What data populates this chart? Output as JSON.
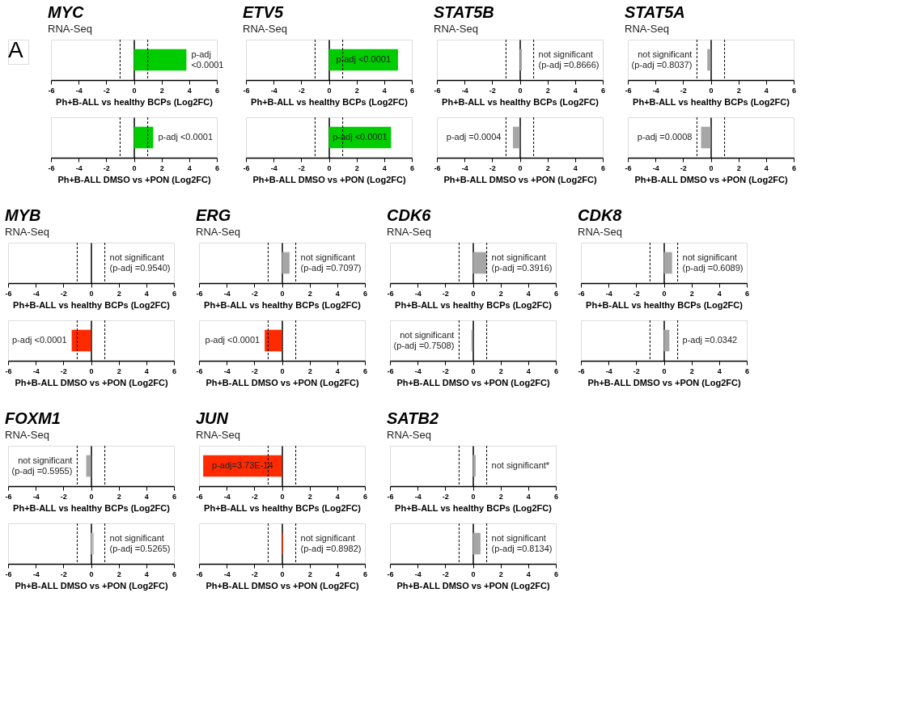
{
  "chart_data": [
    {
      "type": "other",
      "title": "A"
    },
    {
      "type": "bar",
      "orientation": "horizontal",
      "title": "MYC",
      "subtitle": "RNA-Seq",
      "categories": [
        null
      ],
      "values": [
        3.8
      ],
      "colors": [
        "#00cc00"
      ],
      "xlim": [
        -6,
        6
      ],
      "xticks": [
        -6,
        -4,
        -2,
        0,
        2,
        4,
        6
      ],
      "xlabel": "Ph+B-ALL vs healthy BCPs (Log2FC)",
      "tick_labels": "x",
      "ref_lines": [
        {
          "axis": "x",
          "value": -1,
          "line_style": "dashed"
        },
        {
          "axis": "x",
          "value": 1,
          "line_style": "dashed"
        }
      ],
      "annotations": [
        "p-adj",
        "<0.0001"
      ]
    },
    {
      "type": "bar",
      "orientation": "horizontal",
      "categories": [
        null
      ],
      "values": [
        1.4
      ],
      "colors": [
        "#00cc00"
      ],
      "xlim": [
        -6,
        6
      ],
      "xticks": [
        -6,
        -4,
        -2,
        0,
        2,
        4,
        6
      ],
      "xlabel": "Ph+B-ALL DMSO vs +PON (Log2FC)",
      "tick_labels": "x",
      "ref_lines": [
        {
          "axis": "x",
          "value": -1,
          "line_style": "dashed"
        },
        {
          "axis": "x",
          "value": 1,
          "line_style": "dashed"
        }
      ],
      "annotations": [
        "p-adj <0.0001"
      ]
    },
    {
      "type": "bar",
      "orientation": "horizontal",
      "title": "ETV5",
      "subtitle": "RNA-Seq",
      "categories": [
        null
      ],
      "values": [
        5.0
      ],
      "colors": [
        "#00cc00"
      ],
      "xlim": [
        -6,
        6
      ],
      "xticks": [
        -6,
        -4,
        -2,
        0,
        2,
        4,
        6
      ],
      "xlabel": "Ph+B-ALL vs healthy BCPs (Log2FC)",
      "tick_labels": "x",
      "ref_lines": [
        {
          "axis": "x",
          "value": -1,
          "line_style": "dashed"
        },
        {
          "axis": "x",
          "value": 1,
          "line_style": "dashed"
        }
      ],
      "annotations": [
        "p-adj <0.0001"
      ]
    },
    {
      "type": "bar",
      "orientation": "horizontal",
      "categories": [
        null
      ],
      "values": [
        4.5
      ],
      "colors": [
        "#00cc00"
      ],
      "xlim": [
        -6,
        6
      ],
      "xticks": [
        -6,
        -4,
        -2,
        0,
        2,
        4,
        6
      ],
      "xlabel": "Ph+B-ALL DMSO vs +PON (Log2FC)",
      "tick_labels": "x",
      "ref_lines": [
        {
          "axis": "x",
          "value": -1,
          "line_style": "dashed"
        },
        {
          "axis": "x",
          "value": 1,
          "line_style": "dashed"
        }
      ],
      "annotations": [
        "p-adj <0.0001"
      ]
    },
    {
      "type": "bar",
      "orientation": "horizontal",
      "title": "STAT5B",
      "subtitle": "RNA-Seq",
      "categories": [
        null
      ],
      "values": [
        0.15
      ],
      "colors": [
        "#a6a6a6"
      ],
      "xlim": [
        -6,
        6
      ],
      "xticks": [
        -6,
        -4,
        -2,
        0,
        2,
        4,
        6
      ],
      "xlabel": "Ph+B-ALL vs healthy BCPs (Log2FC)",
      "tick_labels": "x",
      "ref_lines": [
        {
          "axis": "x",
          "value": -1,
          "line_style": "dashed"
        },
        {
          "axis": "x",
          "value": 1,
          "line_style": "dashed"
        }
      ],
      "annotations": [
        "not significant",
        "(p-adj =0.8666)"
      ]
    },
    {
      "type": "bar",
      "orientation": "horizontal",
      "categories": [
        null
      ],
      "values": [
        -0.5
      ],
      "colors": [
        "#a6a6a6"
      ],
      "xlim": [
        -6,
        6
      ],
      "xticks": [
        -6,
        -4,
        -2,
        0,
        2,
        4,
        6
      ],
      "xlabel": "Ph+B-ALL DMSO vs +PON (Log2FC)",
      "tick_labels": "x",
      "ref_lines": [
        {
          "axis": "x",
          "value": -1,
          "line_style": "dashed"
        },
        {
          "axis": "x",
          "value": 1,
          "line_style": "dashed"
        }
      ],
      "annotations": [
        "p-adj =0.0004"
      ]
    },
    {
      "type": "bar",
      "orientation": "horizontal",
      "title": "STAT5A",
      "subtitle": "RNA-Seq",
      "categories": [
        null
      ],
      "values": [
        -0.25
      ],
      "colors": [
        "#a6a6a6"
      ],
      "xlim": [
        -6,
        6
      ],
      "xticks": [
        -6,
        -4,
        -2,
        0,
        2,
        4,
        6
      ],
      "xlabel": "Ph+B-ALL vs healthy BCPs (Log2FC)",
      "tick_labels": "x",
      "ref_lines": [
        {
          "axis": "x",
          "value": -1,
          "line_style": "dashed"
        },
        {
          "axis": "x",
          "value": 1,
          "line_style": "dashed"
        }
      ],
      "annotations": [
        "not significant",
        "(p-adj =0.8037)"
      ]
    },
    {
      "type": "bar",
      "orientation": "horizontal",
      "categories": [
        null
      ],
      "values": [
        -0.7
      ],
      "colors": [
        "#a6a6a6"
      ],
      "xlim": [
        -6,
        6
      ],
      "xticks": [
        -6,
        -4,
        -2,
        0,
        2,
        4,
        6
      ],
      "xlabel": "Ph+B-ALL DMSO vs +PON (Log2FC)",
      "tick_labels": "x",
      "ref_lines": [
        {
          "axis": "x",
          "value": -1,
          "line_style": "dashed"
        },
        {
          "axis": "x",
          "value": 1,
          "line_style": "dashed"
        }
      ],
      "annotations": [
        "p-adj =0.0008"
      ]
    },
    {
      "type": "bar",
      "orientation": "horizontal",
      "title": "MYB",
      "subtitle": "RNA-Seq",
      "categories": [
        null
      ],
      "values": [
        null
      ],
      "colors": [
        "#a6a6a6"
      ],
      "xlim": [
        -6,
        6
      ],
      "xticks": [
        -6,
        -4,
        -2,
        0,
        2,
        4,
        6
      ],
      "xlabel": "Ph+B-ALL vs healthy BCPs (Log2FC)",
      "tick_labels": "x",
      "ref_lines": [
        {
          "axis": "x",
          "value": -1,
          "line_style": "dashed"
        },
        {
          "axis": "x",
          "value": 1,
          "line_style": "dashed"
        }
      ],
      "annotations": [
        "not significant",
        "(p-adj =0.9540)"
      ]
    },
    {
      "type": "bar",
      "orientation": "horizontal",
      "categories": [
        null
      ],
      "values": [
        -1.4
      ],
      "colors": [
        "#ff2a00"
      ],
      "xlim": [
        -6,
        6
      ],
      "xticks": [
        -6,
        -4,
        -2,
        0,
        2,
        4,
        6
      ],
      "xlabel": "Ph+B-ALL DMSO vs +PON (Log2FC)",
      "tick_labels": "x",
      "ref_lines": [
        {
          "axis": "x",
          "value": -1,
          "line_style": "dashed"
        },
        {
          "axis": "x",
          "value": 1,
          "line_style": "dashed"
        }
      ],
      "annotations": [
        "p-adj <0.0001"
      ]
    },
    {
      "type": "bar",
      "orientation": "horizontal",
      "title": "ERG",
      "subtitle": "RNA-Seq",
      "categories": [
        null
      ],
      "values": [
        0.55
      ],
      "colors": [
        "#a6a6a6"
      ],
      "xlim": [
        -6,
        6
      ],
      "xticks": [
        -6,
        -4,
        -2,
        0,
        2,
        4,
        6
      ],
      "xlabel": "Ph+B-ALL vs healthy BCPs (Log2FC)",
      "tick_labels": "x",
      "ref_lines": [
        {
          "axis": "x",
          "value": -1,
          "line_style": "dashed"
        },
        {
          "axis": "x",
          "value": 1,
          "line_style": "dashed"
        }
      ],
      "annotations": [
        "not significant",
        "(p-adj =0.7097)"
      ]
    },
    {
      "type": "bar",
      "orientation": "horizontal",
      "categories": [
        null
      ],
      "values": [
        -1.25
      ],
      "colors": [
        "#ff2a00"
      ],
      "xlim": [
        -6,
        6
      ],
      "xticks": [
        -6,
        -4,
        -2,
        0,
        2,
        4,
        6
      ],
      "xlabel": "Ph+B-ALL DMSO vs +PON (Log2FC)",
      "tick_labels": "x",
      "ref_lines": [
        {
          "axis": "x",
          "value": -1,
          "line_style": "dashed"
        },
        {
          "axis": "x",
          "value": 1,
          "line_style": "dashed"
        }
      ],
      "annotations": [
        "p-adj <0.0001"
      ]
    },
    {
      "type": "bar",
      "orientation": "horizontal",
      "title": "CDK6",
      "subtitle": "RNA-Seq",
      "categories": [
        null
      ],
      "values": [
        1.0
      ],
      "colors": [
        "#a6a6a6"
      ],
      "xlim": [
        -6,
        6
      ],
      "xticks": [
        -6,
        -4,
        -2,
        0,
        2,
        4,
        6
      ],
      "xlabel": "Ph+B-ALL vs healthy BCPs (Log2FC)",
      "tick_labels": "x",
      "ref_lines": [
        {
          "axis": "x",
          "value": -1,
          "line_style": "dashed"
        },
        {
          "axis": "x",
          "value": 1,
          "line_style": "dashed"
        }
      ],
      "annotations": [
        "not significant",
        "(p-adj =0.3916)"
      ]
    },
    {
      "type": "bar",
      "orientation": "horizontal",
      "categories": [
        null
      ],
      "values": [
        -0.1
      ],
      "colors": [
        "#a6a6a6"
      ],
      "xlim": [
        -6,
        6
      ],
      "xticks": [
        -6,
        -4,
        -2,
        0,
        2,
        4,
        6
      ],
      "xlabel": "Ph+B-ALL DMSO vs +PON (Log2FC)",
      "tick_labels": "x",
      "ref_lines": [
        {
          "axis": "x",
          "value": -1,
          "line_style": "dashed"
        },
        {
          "axis": "x",
          "value": 1,
          "line_style": "dashed"
        }
      ],
      "annotations": [
        "not significant",
        "(p-adj =0.7508)"
      ]
    },
    {
      "type": "bar",
      "orientation": "horizontal",
      "title": "CDK8",
      "subtitle": "RNA-Seq",
      "categories": [
        null
      ],
      "values": [
        0.6
      ],
      "colors": [
        "#a6a6a6"
      ],
      "xlim": [
        -6,
        6
      ],
      "xticks": [
        -6,
        -4,
        -2,
        0,
        2,
        4,
        6
      ],
      "xlabel": "Ph+B-ALL vs healthy BCPs (Log2FC)",
      "tick_labels": "x",
      "ref_lines": [
        {
          "axis": "x",
          "value": -1,
          "line_style": "dashed"
        },
        {
          "axis": "x",
          "value": 1,
          "line_style": "dashed"
        }
      ],
      "annotations": [
        "not significant",
        "(p-adj =0.6089)"
      ]
    },
    {
      "type": "bar",
      "orientation": "horizontal",
      "categories": [
        null
      ],
      "values": [
        0.4
      ],
      "colors": [
        "#a6a6a6"
      ],
      "xlim": [
        -6,
        6
      ],
      "xticks": [
        -6,
        -4,
        -2,
        0,
        2,
        4,
        6
      ],
      "xlabel": "Ph+B-ALL DMSO vs +PON (Log2FC)",
      "tick_labels": "x",
      "ref_lines": [
        {
          "axis": "x",
          "value": -1,
          "line_style": "dashed"
        },
        {
          "axis": "x",
          "value": 1,
          "line_style": "dashed"
        }
      ],
      "annotations": [
        "p-adj =0.0342"
      ]
    },
    {
      "type": "bar",
      "orientation": "horizontal",
      "title": "FOXM1",
      "subtitle": "RNA-Seq",
      "categories": [
        null
      ],
      "values": [
        -0.35
      ],
      "colors": [
        "#a6a6a6"
      ],
      "xlim": [
        -6,
        6
      ],
      "xticks": [
        -6,
        -4,
        -2,
        0,
        2,
        4,
        6
      ],
      "xlabel": "Ph+B-ALL vs healthy BCPs (Log2FC)",
      "tick_labels": "x",
      "ref_lines": [
        {
          "axis": "x",
          "value": -1,
          "line_style": "dashed"
        },
        {
          "axis": "x",
          "value": 1,
          "line_style": "dashed"
        }
      ],
      "annotations": [
        "not significant",
        "(p-adj =0.5955)"
      ]
    },
    {
      "type": "bar",
      "orientation": "horizontal",
      "categories": [
        null
      ],
      "values": [
        0.2
      ],
      "colors": [
        "#bfbfbf"
      ],
      "xlim": [
        -6,
        6
      ],
      "xticks": [
        -6,
        -4,
        -2,
        0,
        2,
        4,
        6
      ],
      "xlabel": "Ph+B-ALL DMSO vs +PON (Log2FC)",
      "tick_labels": "x",
      "ref_lines": [
        {
          "axis": "x",
          "value": -1,
          "line_style": "dashed"
        },
        {
          "axis": "x",
          "value": 1,
          "line_style": "dashed"
        }
      ],
      "annotations": [
        "not significant",
        "(p-adj =0.5265)"
      ]
    },
    {
      "type": "bar",
      "orientation": "horizontal",
      "title": "JUN",
      "subtitle": "RNA-Seq",
      "categories": [
        null
      ],
      "values": [
        -5.7
      ],
      "colors": [
        "#ff2a00"
      ],
      "xlim": [
        -6,
        6
      ],
      "xticks": [
        -6,
        -4,
        -2,
        0,
        2,
        4,
        6
      ],
      "xlabel": "Ph+B-ALL vs healthy BCPs (Log2FC)",
      "tick_labels": "x",
      "ref_lines": [
        {
          "axis": "x",
          "value": -1,
          "line_style": "dashed"
        },
        {
          "axis": "x",
          "value": 1,
          "line_style": "dashed"
        }
      ],
      "annotations": [
        "p-adj=3.73E-14"
      ]
    },
    {
      "type": "bar",
      "orientation": "horizontal",
      "categories": [
        null
      ],
      "values": [
        0.08
      ],
      "colors": [
        "#ff2a00"
      ],
      "xlim": [
        -6,
        6
      ],
      "xticks": [
        -6,
        -4,
        -2,
        0,
        2,
        4,
        6
      ],
      "xlabel": "Ph+B-ALL DMSO vs +PON (Log2FC)",
      "tick_labels": "x",
      "ref_lines": [
        {
          "axis": "x",
          "value": -1,
          "line_style": "dashed"
        },
        {
          "axis": "x",
          "value": 1,
          "line_style": "dashed"
        }
      ],
      "annotations": [
        "not significant",
        "(p-adj =0.8982)"
      ]
    },
    {
      "type": "bar",
      "orientation": "horizontal",
      "title": "SATB2",
      "subtitle": "RNA-Seq",
      "categories": [
        null
      ],
      "values": [
        0.2
      ],
      "colors": [
        "#a6a6a6"
      ],
      "xlim": [
        -6,
        6
      ],
      "xticks": [
        -6,
        -4,
        -2,
        0,
        2,
        4,
        6
      ],
      "xlabel": "Ph+B-ALL vs healthy BCPs (Log2FC)",
      "tick_labels": "x",
      "ref_lines": [
        {
          "axis": "x",
          "value": -1,
          "line_style": "dashed"
        },
        {
          "axis": "x",
          "value": 1,
          "line_style": "dashed"
        }
      ],
      "annotations": [
        "not significant*"
      ]
    },
    {
      "type": "bar",
      "orientation": "horizontal",
      "categories": [
        null
      ],
      "values": [
        0.55
      ],
      "colors": [
        "#a6a6a6"
      ],
      "xlim": [
        -6,
        6
      ],
      "xticks": [
        -6,
        -4,
        -2,
        0,
        2,
        4,
        6
      ],
      "xlabel": "Ph+B-ALL DMSO vs +PON (Log2FC)",
      "tick_labels": "x",
      "ref_lines": [
        {
          "axis": "x",
          "value": -1,
          "line_style": "dashed"
        },
        {
          "axis": "x",
          "value": 1,
          "line_style": "dashed"
        }
      ],
      "annotations": [
        "not significant",
        "(p-adj =0.8134)"
      ]
    }
  ]
}
